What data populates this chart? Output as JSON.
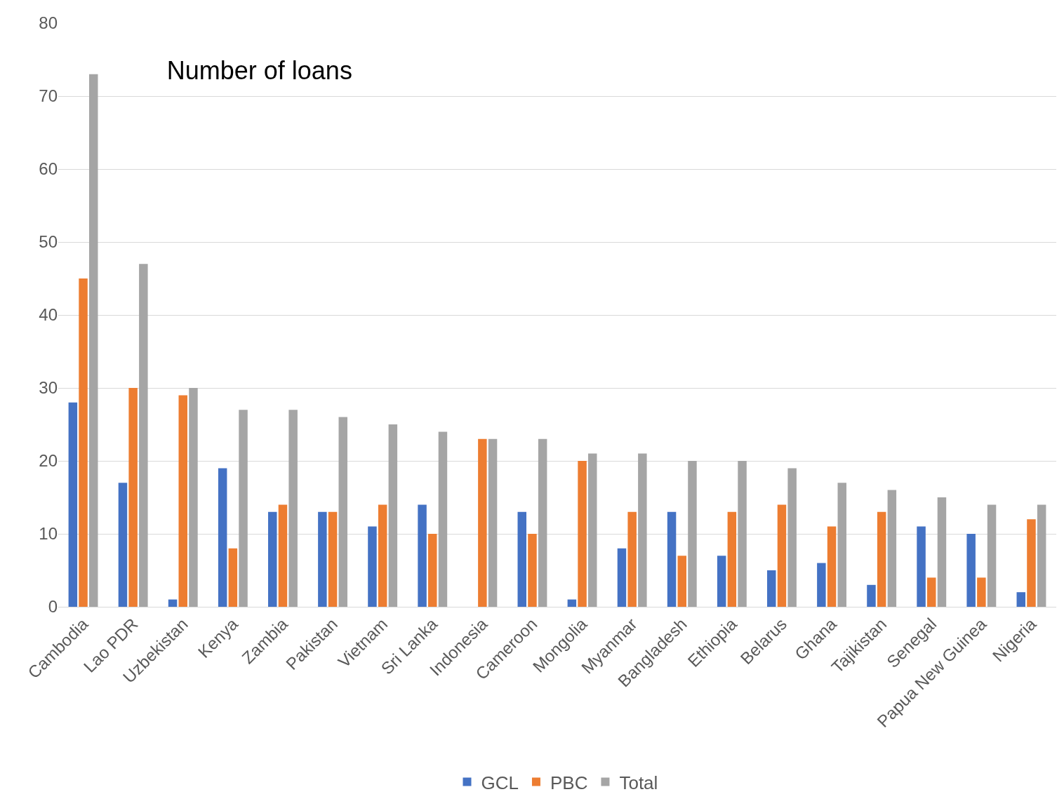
{
  "chart_data": {
    "type": "bar",
    "title": "Number of loans",
    "categories": [
      "Cambodia",
      "Lao PDR",
      "Uzbekistan",
      "Kenya",
      "Zambia",
      "Pakistan",
      "Vietnam",
      "Sri Lanka",
      "Indonesia",
      "Cameroon",
      "Mongolia",
      "Myanmar",
      "Bangladesh",
      "Ethiopia",
      "Belarus",
      "Ghana",
      "Tajikistan",
      "Senegal",
      "Papua New Guinea",
      "Nigeria"
    ],
    "series": [
      {
        "name": "GCL",
        "color": "#4472c4",
        "values": [
          28,
          17,
          1,
          19,
          13,
          13,
          11,
          14,
          0,
          13,
          1,
          8,
          13,
          7,
          5,
          6,
          3,
          11,
          10,
          2
        ]
      },
      {
        "name": "PBC",
        "color": "#ed7d31",
        "values": [
          45,
          30,
          29,
          8,
          14,
          13,
          14,
          10,
          23,
          10,
          20,
          13,
          7,
          13,
          14,
          11,
          13,
          4,
          4,
          12
        ]
      },
      {
        "name": "Total",
        "color": "#a5a5a5",
        "values": [
          73,
          47,
          30,
          27,
          27,
          26,
          25,
          24,
          23,
          23,
          21,
          21,
          20,
          20,
          19,
          17,
          16,
          15,
          14,
          14
        ]
      }
    ],
    "ylim": [
      0,
      80
    ],
    "yticks": [
      0,
      10,
      20,
      30,
      40,
      50,
      60,
      70,
      80
    ],
    "grid": "y",
    "legend": "bottom"
  }
}
